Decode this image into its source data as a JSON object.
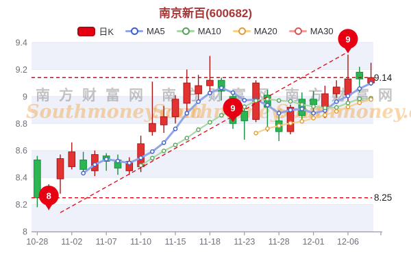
{
  "header": {
    "title": "南京新百(600682)"
  },
  "legend": {
    "items": [
      {
        "label": "日K",
        "type": "candle",
        "color": "#e60012"
      },
      {
        "label": "MA5",
        "type": "ma",
        "line_color": "#8fa5e6",
        "ring_color": "#3f5ec9"
      },
      {
        "label": "MA10",
        "type": "ma",
        "line_color": "#a9d6a4",
        "ring_color": "#55a35b"
      },
      {
        "label": "MA20",
        "type": "ma",
        "line_color": "#f6d189",
        "ring_color": "#e89a2f"
      },
      {
        "label": "MA30",
        "type": "ma",
        "line_color": "#f0a0a0",
        "ring_color": "#e05252"
      }
    ]
  },
  "watermark": {
    "text_cn": "南方财富网",
    "text_en": "Southmoney.com"
  },
  "chart_data": {
    "type": "candlestick",
    "title": "南京新百(600682)",
    "ylim": [
      8,
      9.4
    ],
    "grid": true,
    "y_ticks": [
      {
        "v": 9.4,
        "label": "9.4"
      },
      {
        "v": 9.2,
        "label": "9.2"
      },
      {
        "v": 9.0,
        "label": "9"
      },
      {
        "v": 8.8,
        "label": "8.8"
      },
      {
        "v": 8.6,
        "label": "8.6"
      },
      {
        "v": 8.4,
        "label": "8.4"
      },
      {
        "v": 8.2,
        "label": "8.2"
      },
      {
        "v": 8.0,
        "label": "8"
      }
    ],
    "x_ticks": [
      {
        "i": 0,
        "label": "10-28"
      },
      {
        "i": 3,
        "label": "11-02"
      },
      {
        "i": 6,
        "label": "11-07"
      },
      {
        "i": 9,
        "label": "11-10"
      },
      {
        "i": 12,
        "label": "11-15"
      },
      {
        "i": 15,
        "label": "11-18"
      },
      {
        "i": 18,
        "label": "11-23"
      },
      {
        "i": 21,
        "label": "11-28"
      },
      {
        "i": 24,
        "label": "12-01"
      },
      {
        "i": 27,
        "label": "12-06"
      },
      {
        "i": 30,
        "label": ""
      }
    ],
    "candles": [
      {
        "d": "10-28",
        "o": 8.53,
        "c": 8.25,
        "h": 8.56,
        "l": 8.18
      },
      {
        "d": "10-31",
        "o": 8.28,
        "c": 8.32,
        "h": 8.35,
        "l": 8.16
      },
      {
        "d": "11-01",
        "o": 8.39,
        "c": 8.54,
        "h": 8.57,
        "l": 8.28
      },
      {
        "d": "11-02",
        "o": 8.48,
        "c": 8.59,
        "h": 8.66,
        "l": 8.46
      },
      {
        "d": "11-03",
        "o": 8.53,
        "c": 8.46,
        "h": 8.59,
        "l": 8.43
      },
      {
        "d": "11-04",
        "o": 8.45,
        "c": 8.57,
        "h": 8.6,
        "l": 8.41
      },
      {
        "d": "11-07",
        "o": 8.56,
        "c": 8.52,
        "h": 8.58,
        "l": 8.45
      },
      {
        "d": "11-08",
        "o": 8.53,
        "c": 8.47,
        "h": 8.57,
        "l": 8.42
      },
      {
        "d": "11-09",
        "o": 8.45,
        "c": 8.52,
        "h": 8.55,
        "l": 8.42
      },
      {
        "d": "11-10",
        "o": 8.48,
        "c": 8.65,
        "h": 8.71,
        "l": 8.44
      },
      {
        "d": "11-11",
        "o": 8.74,
        "c": 8.8,
        "h": 9.11,
        "l": 8.71
      },
      {
        "d": "11-14",
        "o": 8.79,
        "c": 8.85,
        "h": 8.93,
        "l": 8.73
      },
      {
        "d": "11-15",
        "o": 8.85,
        "c": 8.98,
        "h": 9.01,
        "l": 8.8
      },
      {
        "d": "11-16",
        "o": 8.95,
        "c": 9.1,
        "h": 9.2,
        "l": 8.87
      },
      {
        "d": "11-17",
        "o": 9.02,
        "c": 9.08,
        "h": 9.16,
        "l": 8.96
      },
      {
        "d": "11-18",
        "o": 9.08,
        "c": 9.12,
        "h": 9.3,
        "l": 9.02
      },
      {
        "d": "11-21",
        "o": 9.12,
        "c": 9.04,
        "h": 9.14,
        "l": 8.97
      },
      {
        "d": "11-22",
        "o": 9.0,
        "c": 8.8,
        "h": 9.02,
        "l": 8.76
      },
      {
        "d": "11-23",
        "o": 8.89,
        "c": 8.82,
        "h": 8.94,
        "l": 8.68
      },
      {
        "d": "11-24",
        "o": 8.83,
        "c": 9.1,
        "h": 9.12,
        "l": 8.81
      },
      {
        "d": "11-25",
        "o": 9.01,
        "c": 8.92,
        "h": 9.05,
        "l": 8.74
      },
      {
        "d": "11-28",
        "o": 8.82,
        "c": 8.74,
        "h": 8.9,
        "l": 8.67
      },
      {
        "d": "11-29",
        "o": 8.74,
        "c": 8.92,
        "h": 8.94,
        "l": 8.72
      },
      {
        "d": "11-30",
        "o": 8.98,
        "c": 8.86,
        "h": 9.03,
        "l": 8.81
      },
      {
        "d": "12-01",
        "o": 8.98,
        "c": 8.94,
        "h": 9.04,
        "l": 8.89
      },
      {
        "d": "12-02",
        "o": 8.92,
        "c": 9.02,
        "h": 9.08,
        "l": 8.84
      },
      {
        "d": "12-05",
        "o": 9.02,
        "c": 9.07,
        "h": 9.12,
        "l": 8.99
      },
      {
        "d": "12-06",
        "o": 9.01,
        "c": 9.13,
        "h": 9.31,
        "l": 8.96
      },
      {
        "d": "12-07",
        "o": 9.18,
        "c": 9.13,
        "h": 9.22,
        "l": 9.03
      },
      {
        "d": "12-08",
        "o": 9.1,
        "c": 9.14,
        "h": 9.25,
        "l": 9.08
      }
    ],
    "ma_series": [
      {
        "name": "MA5",
        "period": 5
      },
      {
        "name": "MA10",
        "period": 10
      },
      {
        "name": "MA20",
        "period": 20
      },
      {
        "name": "MA30",
        "period": 30
      }
    ],
    "ref_lines": [
      {
        "price": 9.14,
        "label": "9.14"
      },
      {
        "price": 8.25,
        "label": "8.25"
      }
    ],
    "trend_line": {
      "from": {
        "index": 2,
        "price": 8.14
      },
      "to": {
        "index": 27,
        "price": 9.33
      }
    },
    "markers": [
      {
        "label": "8",
        "index": 1,
        "tip_price": 8.16
      },
      {
        "label": "9",
        "index": 17,
        "tip_price": 8.81
      },
      {
        "label": "9",
        "index": 27,
        "tip_price": 9.32
      }
    ],
    "colors": {
      "up": "#e23333",
      "up_border": "#ac1414",
      "down": "#2db453",
      "down_border": "#0f9238",
      "ma5_line": "#8fa5e6",
      "ma5_ring": "#3f5ec9",
      "ma10_line": "#a9d6a4",
      "ma10_ring": "#55a35b",
      "ma20_line": "#f6d189",
      "ma20_ring": "#e89a2f",
      "ma30_line": "#f0a0a0",
      "ma30_ring": "#e05252",
      "ref": "#e60012",
      "marker": "#e60012",
      "band": "#eef1f9",
      "gridline": "#e3e7f1",
      "axis": "#9a9aa2",
      "tick_text": "#70707a",
      "ref_text": "#1d1d1f"
    }
  }
}
